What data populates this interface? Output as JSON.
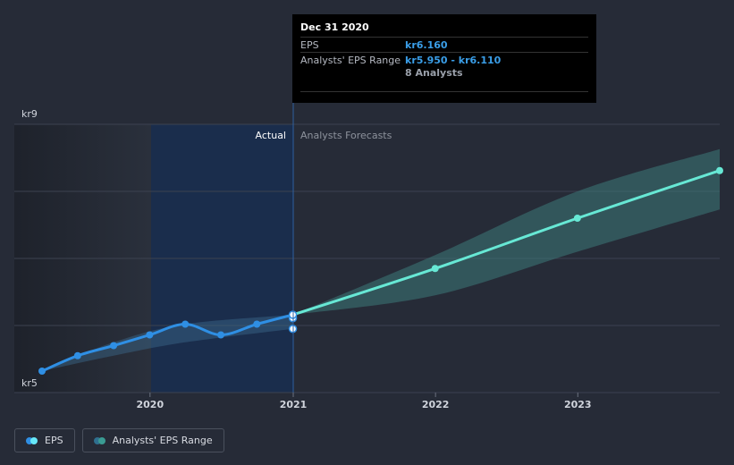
{
  "chart_data": {
    "type": "line",
    "y_axis": {
      "top_label": "kr9",
      "bottom_label": "kr5",
      "ylim": [
        5,
        9
      ]
    },
    "x_axis": {
      "ticks": [
        "2020",
        "2021",
        "2022",
        "2023"
      ],
      "xlim": [
        "2019-03-31",
        "2023-12-31"
      ]
    },
    "region_labels": {
      "actual": "Actual",
      "forecast": "Analysts Forecasts"
    },
    "series": [
      {
        "name": "EPS",
        "color": "#2f8fe4",
        "points": [
          [
            "2019-03-31",
            5.32
          ],
          [
            "2019-06-30",
            5.55
          ],
          [
            "2019-09-30",
            5.7
          ],
          [
            "2019-12-31",
            5.86
          ],
          [
            "2020-03-31",
            6.02
          ],
          [
            "2020-06-30",
            5.86
          ],
          [
            "2020-09-30",
            6.02
          ],
          [
            "2020-12-31",
            6.16
          ]
        ],
        "extra_points": [
          [
            "2020-12-31",
            6.11
          ],
          [
            "2020-12-31",
            5.95
          ]
        ]
      },
      {
        "name": "Analysts' EPS Range",
        "color": "#67e8d5",
        "points": [
          [
            "2020-12-31",
            6.16
          ],
          [
            "2021-12-31",
            6.85
          ],
          [
            "2022-12-31",
            7.6
          ],
          [
            "2023-12-31",
            8.31
          ]
        ],
        "band_high": [
          [
            "2020-12-31",
            6.16
          ],
          [
            "2021-12-31",
            7.05
          ],
          [
            "2022-12-31",
            8.0
          ],
          [
            "2023-12-31",
            8.63
          ]
        ],
        "band_low": [
          [
            "2020-12-31",
            6.16
          ],
          [
            "2021-12-31",
            6.45
          ],
          [
            "2022-12-31",
            7.1
          ],
          [
            "2023-12-31",
            7.73
          ]
        ]
      }
    ],
    "past_band_high": [
      [
        "2019-03-31",
        5.32
      ],
      [
        "2019-09-30",
        5.75
      ],
      [
        "2020-03-31",
        6.02
      ],
      [
        "2020-12-31",
        6.16
      ]
    ],
    "past_band_low": [
      [
        "2019-03-31",
        5.32
      ],
      [
        "2019-09-30",
        5.55
      ],
      [
        "2020-03-31",
        5.75
      ],
      [
        "2020-12-31",
        5.95
      ]
    ]
  },
  "tooltip": {
    "date": "Dec 31 2020",
    "eps_label": "EPS",
    "eps_value": "kr6.160",
    "range_label": "Analysts' EPS Range",
    "range_value": "kr5.950 - kr6.110",
    "analysts": "8 Analysts"
  },
  "legend": {
    "eps": "EPS",
    "range": "Analysts' EPS Range",
    "eps_colors": [
      "#2f8fe4",
      "#67e8f9"
    ],
    "range_colors": [
      "#2f6f8f",
      "#3a9b93"
    ]
  }
}
